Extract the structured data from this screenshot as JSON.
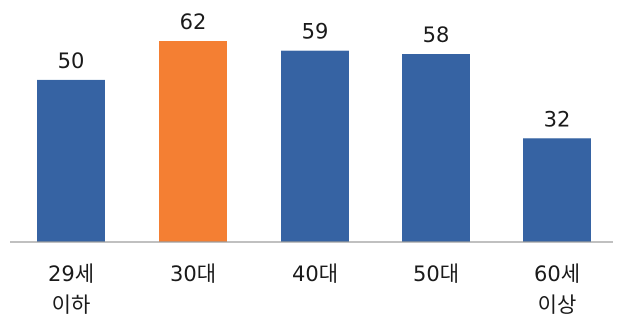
{
  "chart_data": {
    "type": "bar",
    "categories": [
      [
        "29세",
        "이하"
      ],
      [
        "30대"
      ],
      [
        "40대"
      ],
      [
        "50대"
      ],
      [
        "60세",
        "이상"
      ]
    ],
    "values": [
      50,
      62,
      59,
      58,
      32
    ],
    "data_labels": [
      "50",
      "62",
      "59",
      "58",
      "32"
    ],
    "colors": [
      "#3663a3",
      "#f47f33",
      "#3663a3",
      "#3663a3",
      "#3663a3"
    ],
    "highlight_index": 1,
    "ylim": [
      0,
      62
    ],
    "grid": false,
    "legend": "none"
  }
}
